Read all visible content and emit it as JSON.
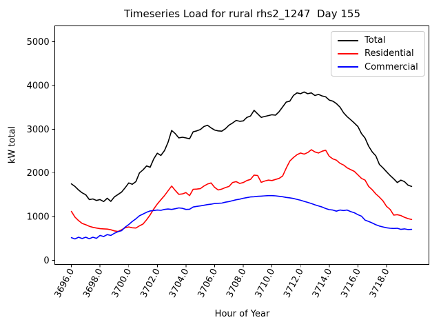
{
  "chart_data": {
    "type": "line",
    "title": "Timeseries Load for rural rhs2_1247  Day 155",
    "xlabel": "Hour of Year",
    "ylabel": "kW total",
    "xlim": [
      3694.85,
      3720.95
    ],
    "ylim": [
      -90,
      5365
    ],
    "grid": false,
    "legend_position": "upper right",
    "xticks": [
      3696,
      3698,
      3700,
      3702,
      3704,
      3706,
      3708,
      3710,
      3712,
      3714,
      3716,
      3718
    ],
    "xtick_labels": [
      "3696.0",
      "3698.0",
      "3700.0",
      "3702.0",
      "3704.0",
      "3706.0",
      "3708.0",
      "3710.0",
      "3712.0",
      "3714.0",
      "3716.0",
      "3718.0"
    ],
    "yticks": [
      0,
      1000,
      2000,
      3000,
      4000,
      5000
    ],
    "ytick_labels": [
      "0",
      "1000",
      "2000",
      "3000",
      "4000",
      "5000"
    ],
    "x": [
      3696.0,
      3696.25,
      3696.5,
      3696.75,
      3697.0,
      3697.25,
      3697.5,
      3697.75,
      3698.0,
      3698.25,
      3698.5,
      3698.75,
      3699.0,
      3699.25,
      3699.5,
      3699.75,
      3700.0,
      3700.25,
      3700.5,
      3700.75,
      3701.0,
      3701.25,
      3701.5,
      3701.75,
      3702.0,
      3702.25,
      3702.5,
      3702.75,
      3703.0,
      3703.25,
      3703.5,
      3703.75,
      3704.0,
      3704.25,
      3704.5,
      3704.75,
      3705.0,
      3705.25,
      3705.5,
      3705.75,
      3706.0,
      3706.25,
      3706.5,
      3706.75,
      3707.0,
      3707.25,
      3707.5,
      3707.75,
      3708.0,
      3708.25,
      3708.5,
      3708.75,
      3709.0,
      3709.25,
      3709.5,
      3709.75,
      3710.0,
      3710.25,
      3710.5,
      3710.75,
      3711.0,
      3711.25,
      3711.5,
      3711.75,
      3712.0,
      3712.25,
      3712.5,
      3712.75,
      3713.0,
      3713.25,
      3713.5,
      3713.75,
      3714.0,
      3714.25,
      3714.5,
      3714.75,
      3715.0,
      3715.25,
      3715.5,
      3715.75,
      3716.0,
      3716.25,
      3716.5,
      3716.75,
      3717.0,
      3717.25,
      3717.5,
      3717.75,
      3718.0,
      3718.25,
      3718.5,
      3718.75,
      3719.0,
      3719.25,
      3719.5,
      3719.75
    ],
    "series": [
      {
        "name": "Total",
        "color": "#000000",
        "values": [
          1750,
          1690,
          1610,
          1545,
          1500,
          1390,
          1405,
          1370,
          1390,
          1345,
          1420,
          1350,
          1450,
          1505,
          1560,
          1660,
          1770,
          1740,
          1800,
          2000,
          2070,
          2160,
          2130,
          2320,
          2450,
          2400,
          2510,
          2700,
          2970,
          2900,
          2800,
          2815,
          2800,
          2780,
          2940,
          2960,
          2990,
          3060,
          3090,
          3030,
          2980,
          2960,
          2955,
          3010,
          3090,
          3140,
          3200,
          3180,
          3190,
          3270,
          3300,
          3430,
          3350,
          3270,
          3290,
          3310,
          3330,
          3320,
          3400,
          3510,
          3620,
          3640,
          3770,
          3830,
          3810,
          3850,
          3810,
          3830,
          3770,
          3795,
          3760,
          3740,
          3665,
          3640,
          3585,
          3505,
          3375,
          3285,
          3215,
          3140,
          3060,
          2900,
          2795,
          2610,
          2480,
          2390,
          2195,
          2115,
          2025,
          1940,
          1865,
          1780,
          1835,
          1800,
          1720,
          1690
        ]
      },
      {
        "name": "Residential",
        "color": "#ff0000",
        "values": [
          1120,
          990,
          910,
          845,
          815,
          780,
          755,
          740,
          725,
          720,
          715,
          700,
          675,
          660,
          700,
          745,
          765,
          745,
          740,
          790,
          830,
          930,
          1040,
          1175,
          1290,
          1385,
          1480,
          1590,
          1700,
          1600,
          1510,
          1520,
          1550,
          1480,
          1625,
          1630,
          1640,
          1700,
          1745,
          1770,
          1670,
          1610,
          1630,
          1665,
          1690,
          1780,
          1800,
          1760,
          1780,
          1825,
          1850,
          1950,
          1940,
          1785,
          1815,
          1835,
          1825,
          1850,
          1875,
          1930,
          2110,
          2270,
          2350,
          2415,
          2455,
          2430,
          2465,
          2530,
          2480,
          2455,
          2495,
          2520,
          2380,
          2320,
          2290,
          2220,
          2180,
          2115,
          2075,
          2035,
          1955,
          1875,
          1835,
          1690,
          1615,
          1520,
          1445,
          1360,
          1235,
          1165,
          1035,
          1045,
          1025,
          985,
          955,
          935
        ]
      },
      {
        "name": "Commercial",
        "color": "#0000ff",
        "values": [
          520,
          490,
          530,
          500,
          530,
          495,
          530,
          505,
          570,
          545,
          590,
          570,
          620,
          655,
          680,
          760,
          820,
          890,
          950,
          1020,
          1060,
          1100,
          1130,
          1140,
          1150,
          1145,
          1165,
          1175,
          1165,
          1180,
          1200,
          1190,
          1165,
          1170,
          1220,
          1235,
          1245,
          1260,
          1275,
          1285,
          1300,
          1305,
          1310,
          1330,
          1345,
          1365,
          1385,
          1400,
          1420,
          1435,
          1450,
          1455,
          1465,
          1470,
          1475,
          1480,
          1480,
          1475,
          1465,
          1455,
          1440,
          1430,
          1415,
          1395,
          1375,
          1350,
          1325,
          1300,
          1270,
          1245,
          1220,
          1185,
          1160,
          1150,
          1125,
          1150,
          1140,
          1150,
          1115,
          1090,
          1045,
          1010,
          920,
          890,
          855,
          815,
          785,
          765,
          745,
          735,
          730,
          735,
          710,
          720,
          705,
          710
        ]
      }
    ],
    "legend": [
      {
        "label": "Total",
        "color": "#000000"
      },
      {
        "label": "Residential",
        "color": "#ff0000"
      },
      {
        "label": "Commercial",
        "color": "#0000ff"
      }
    ]
  }
}
